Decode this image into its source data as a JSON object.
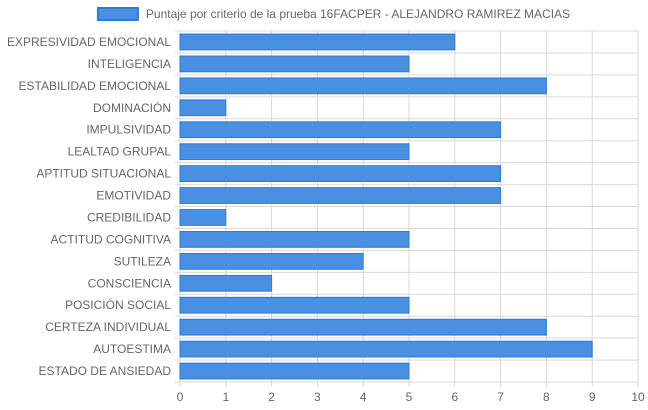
{
  "chart_data": {
    "type": "bar",
    "orientation": "horizontal",
    "legend": {
      "label": "Puntaje por criterio de la prueba 16FACPER - ALEJANDRO RAMIREZ MACIAS",
      "placement": "top-center"
    },
    "categories": [
      "EXPRESIVIDAD EMOCIONAL",
      "INTELIGENCIA",
      "ESTABILIDAD EMOCIONAL",
      "DOMINACIÓN",
      "IMPULSIVIDAD",
      "LEALTAD GRUPAL",
      "APTITUD SITUACIONAL",
      "EMOTIVIDAD",
      "CREDIBILIDAD",
      "ACTITUD COGNITIVA",
      "SUTILEZA",
      "CONSCIENCIA",
      "POSICIÓN SOCIAL",
      "CERTEZA INDIVIDUAL",
      "AUTOESTIMA",
      "ESTADO DE ANSIEDAD"
    ],
    "series": [
      {
        "name": "Puntaje por criterio de la prueba 16FACPER - ALEJANDRO RAMIREZ MACIAS",
        "values": [
          6,
          5,
          8,
          1,
          7,
          5,
          7,
          7,
          1,
          5,
          4,
          2,
          5,
          8,
          9,
          5
        ]
      }
    ],
    "xlim": [
      0,
      10
    ],
    "xticks": [
      "0",
      "1",
      "2",
      "3",
      "4",
      "5",
      "6",
      "7",
      "8",
      "9",
      "10"
    ],
    "grid": true,
    "colors": {
      "bar_fill": "#4a90e2",
      "bar_stroke": "#2f7ad6",
      "grid": "#d9d9d9",
      "text": "#666666"
    }
  }
}
